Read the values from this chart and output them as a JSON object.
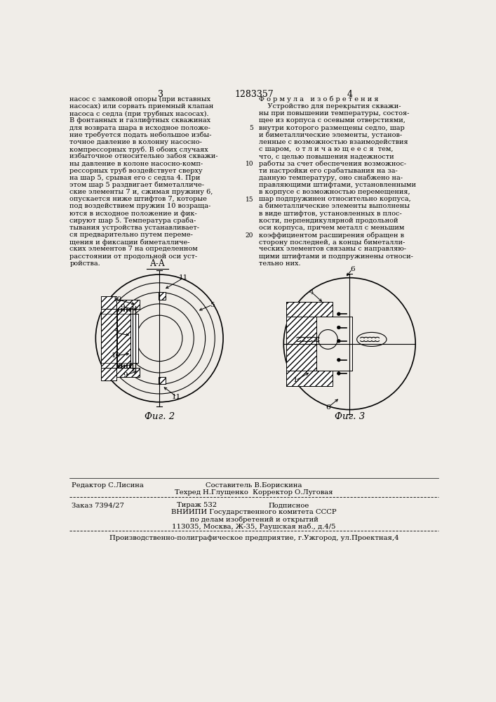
{
  "bg_color": "#f0ede8",
  "patent_number": "1283357",
  "page_left": "3",
  "page_right": "4",
  "left_column_text": [
    "насос с замковой опоры (при вставных",
    "насосах) или сорвать приемный клапан",
    "насоса с седла (при трубных насосах).",
    "В фонтанных и газлифтных скважинах",
    "для возврата шара в исходное положе-",
    "ние требуется подать небольшое избы-",
    "точное давление в колонну насосно-",
    "компрессорных труб. В обоих случаях",
    "избыточное относительно забоя скважи-",
    "ны давление в колоне насосно-комп-",
    "рессорных труб воздействует сверху",
    "на шар 5, срывая его с седла 4. При",
    "этом шар 5 раздвигает биметалличе-",
    "ские элементы 7 и, сжимая пружину 6,",
    "опускается ниже штифтов 7, которые",
    "под воздействием пружин 10 возраща-",
    "ются в исходное положение и фик-",
    "сируют шар 5. Температура сраба-",
    "тывания устройства устанавливает-",
    "ся предварительно путем переме-",
    "щения и фиксации биметалличе-",
    "ских элементов 7 на определенном",
    "расстоянии от продольной оси уст-",
    "ройства."
  ],
  "right_col_header": "Ф о р м у л а   и з о б р е т е н и я",
  "right_column_text": [
    "    Устройство для перекрытия скважи-",
    "ны при повышении температуры, состоя-",
    "щее из корпуса с осевыми отверстиями,",
    "внутри которого размещены седло, шар",
    "и биметаллические элементы, установ-",
    "ленные с возможностью взаимодействия",
    "с шаром,  о т л и ч а ю щ е е с я  тем,",
    "что, с целью повышения надежности",
    "работы за счет обеспечения возможнос-",
    "ти настройки его срабатывания на за-",
    "данную температуру, оно снабжено на-",
    "правляющими штифтами, установленными",
    "в корпусе с возможностью перемещения,",
    "шар подпружинен относительно корпуса,",
    "а биметаллические элементы выполнены",
    "в виде штифтов, установленных в плос-",
    "кости, перпендикулярной продольной",
    "оси корпуса, причем металл с меньшим",
    "коэффициентом расширения обращен в",
    "сторону последней, а концы биметалли-",
    "ческих элементов связаны с направляю-",
    "щими штифтами и подпружинены относи-",
    "тельно них."
  ],
  "line_numbers": [
    "5",
    "10",
    "15",
    "20"
  ],
  "line_num_rows": [
    4,
    9,
    14,
    19
  ],
  "fig2_label": "Фиг. 2",
  "fig3_label": "Фиг. 3",
  "aa_label": "А-А",
  "footer_line1_left": "Редактор С.Лисина",
  "footer_line1_center1": "Составитель В.Борискина",
  "footer_line1_center2": "Техред Н.Глущенко  Корректор О.Луговая",
  "footer_line2_left": "Заказ 7394/27",
  "footer_line2_center": "Тираж 532",
  "footer_line2_right": "Подписное",
  "footer_line3": "ВНИИПИ Государственного комитета СССР",
  "footer_line4": "по делам изобретений и открытий",
  "footer_line5": "113035, Москва, Ж-35, Раушская наб., д.4/5",
  "footer_line6": "Производственно-полиграфическое предприятие, г.Ужгород, ул.Проектная,4"
}
